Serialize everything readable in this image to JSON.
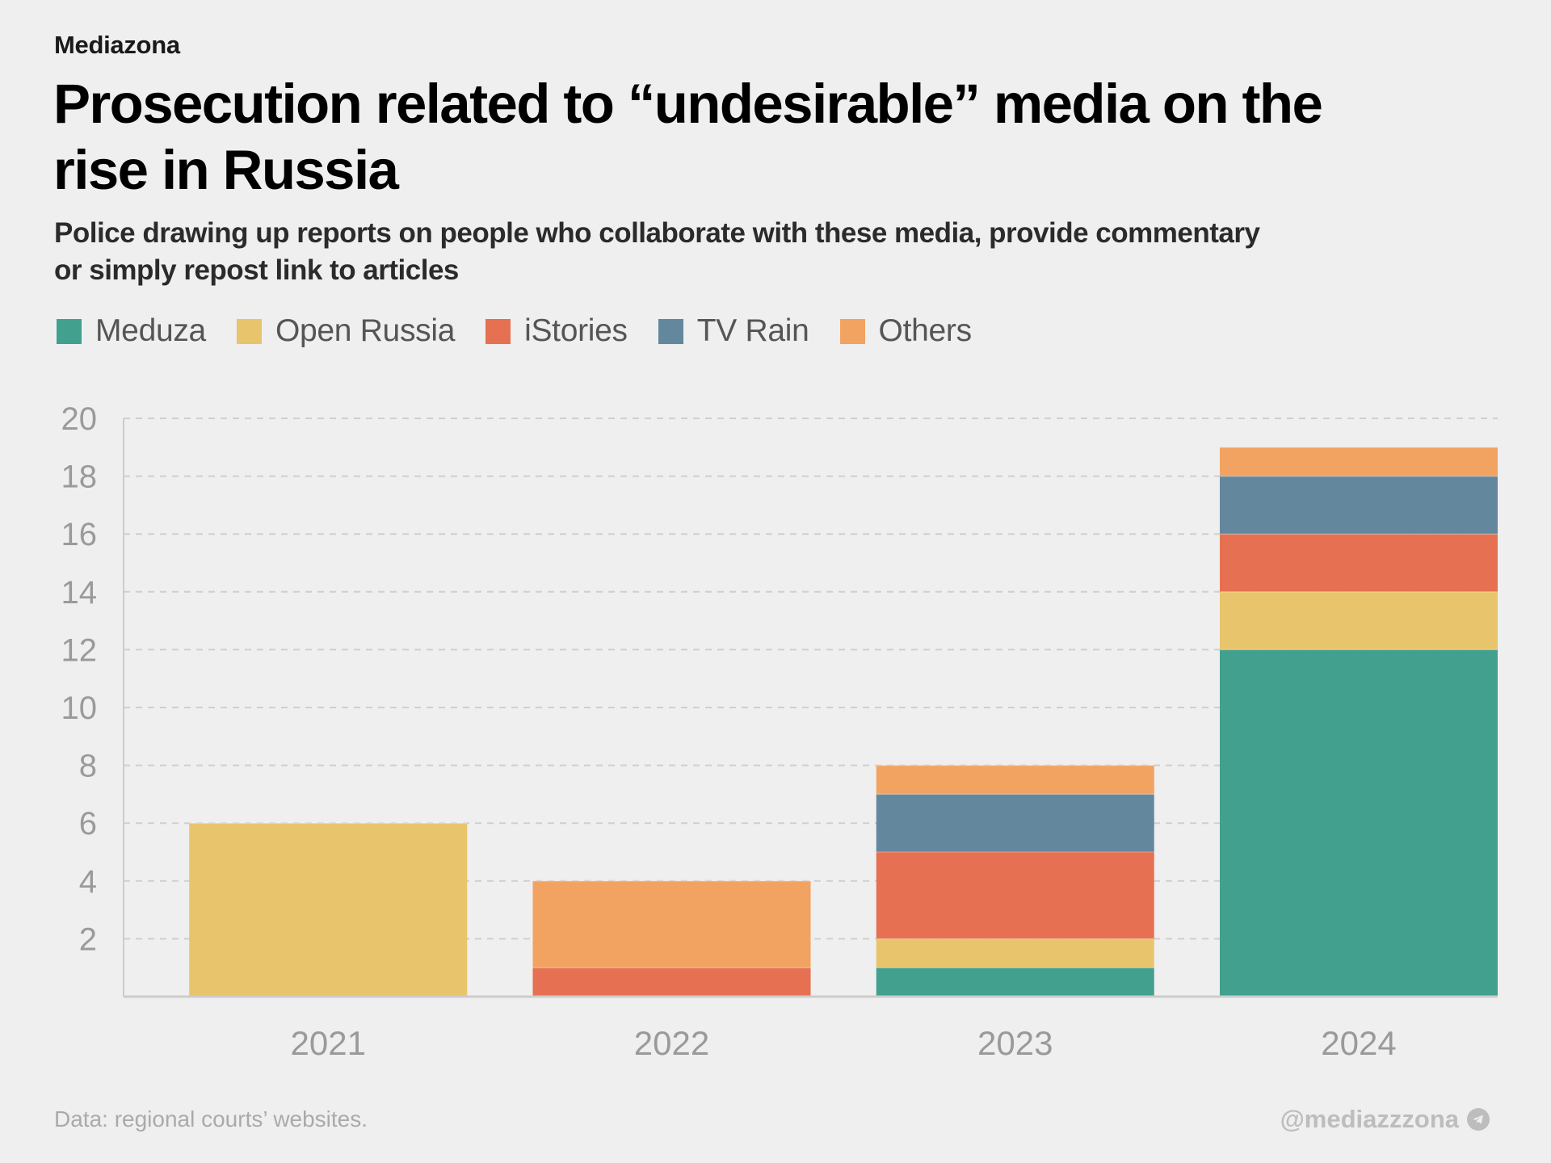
{
  "header": {
    "brand": "Mediazona",
    "title": "Prosecution related to “undesirable” media on the rise in Russia",
    "subtitle": "Police drawing up reports on people who collaborate with these media, provide commentary or simply repost link to articles"
  },
  "legend": [
    {
      "name": "Meduza",
      "color": "#42a08f"
    },
    {
      "name": "Open Russia",
      "color": "#e8c46c"
    },
    {
      "name": "iStories",
      "color": "#e67052"
    },
    {
      "name": "TV Rain",
      "color": "#63889e"
    },
    {
      "name": "Others",
      "color": "#f2a362"
    }
  ],
  "footer": {
    "source": "Data: regional courts’ websites.",
    "handle": "@mediazzzona",
    "handle_icon": "telegram-icon"
  },
  "chart_data": {
    "type": "bar",
    "stacked": true,
    "title": "Prosecution related to “undesirable” media on the rise in Russia",
    "subtitle": "Police drawing up reports on people who collaborate with these media, provide commentary or simply repost link to articles",
    "xlabel": "",
    "ylabel": "",
    "categories": [
      "2021",
      "2022",
      "2023",
      "2024"
    ],
    "series": [
      {
        "name": "Meduza",
        "color": "#42a08f",
        "values": [
          0,
          0,
          1,
          12
        ]
      },
      {
        "name": "Open Russia",
        "color": "#e8c46c",
        "values": [
          6,
          0,
          1,
          2
        ]
      },
      {
        "name": "iStories",
        "color": "#e67052",
        "values": [
          0,
          1,
          3,
          2
        ]
      },
      {
        "name": "TV Rain",
        "color": "#63889e",
        "values": [
          0,
          0,
          2,
          2
        ]
      },
      {
        "name": "Others",
        "color": "#f2a362",
        "values": [
          0,
          3,
          1,
          1
        ]
      }
    ],
    "totals": [
      6,
      4,
      8,
      19
    ],
    "ylim": [
      0,
      20
    ],
    "yticks": [
      2,
      4,
      6,
      8,
      10,
      12,
      14,
      16,
      18,
      20
    ],
    "grid": true,
    "legend_position": "top-left",
    "source": "Data: regional courts’ websites."
  }
}
